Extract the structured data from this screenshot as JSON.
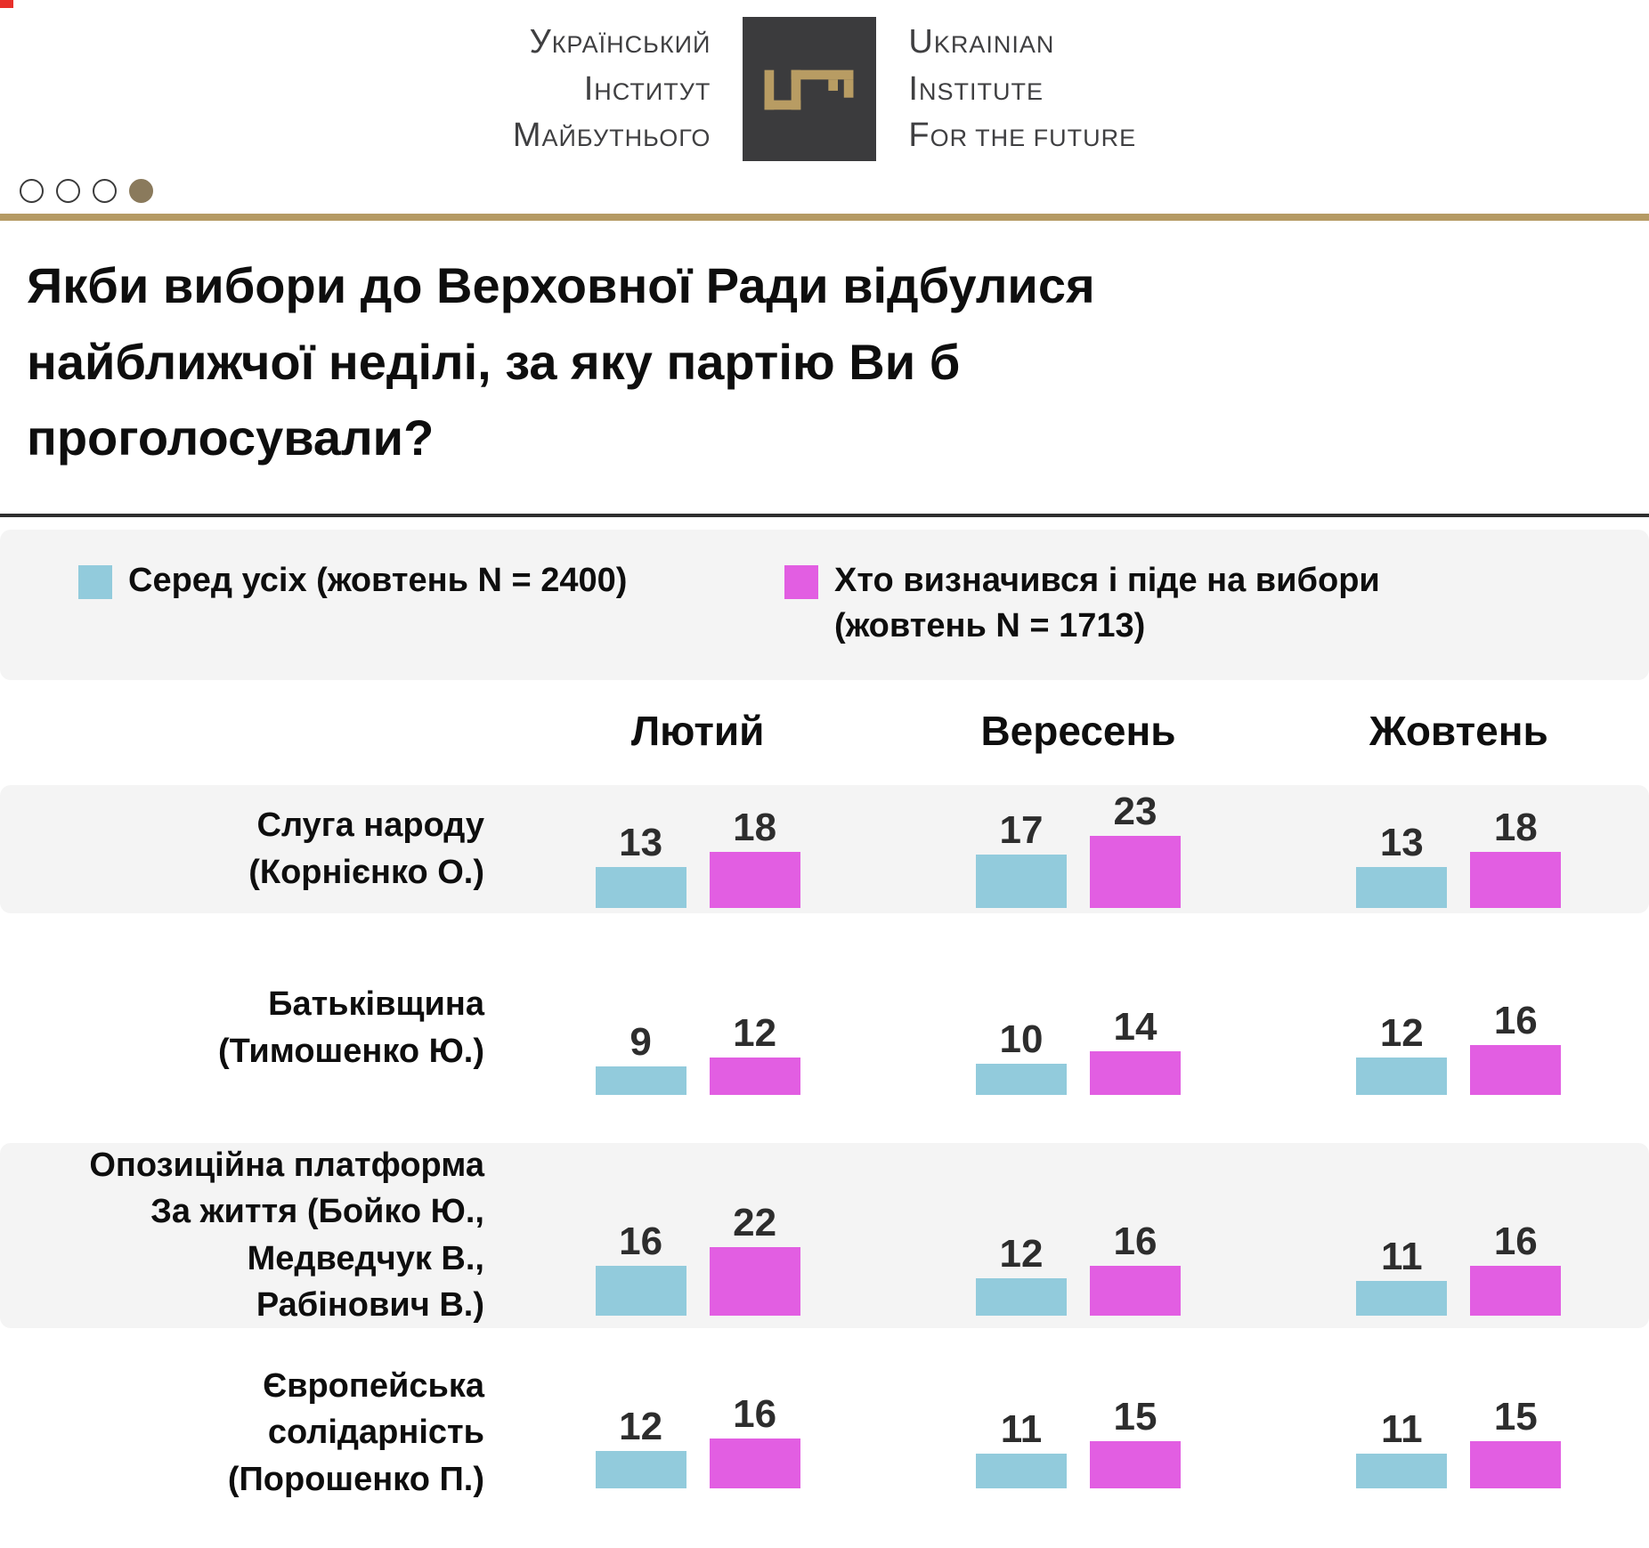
{
  "brand": {
    "name_uk_lines": [
      "Український",
      "Інститут",
      "Майбутнього"
    ],
    "name_en_lines": [
      "Ukrainian",
      "Institute",
      "for the Future"
    ],
    "logo_square_color": "#3b3b3d",
    "key_color": "#b89c63",
    "text_color": "#3f3f41"
  },
  "carousel": {
    "dot_count": 4,
    "active_index": 3
  },
  "accents": {
    "gold_line": "#b59a64",
    "active_dot": "#8a7a5c",
    "band_gray": "#f4f4f4",
    "dark_rule": "#2f2f2f"
  },
  "title": "Якби вибори до Верховної Ради відбулися найближчої неділі, за яку партію Ви б проголосували?",
  "legend": {
    "items": [
      {
        "label": "Серед усіх (жовтень N = 2400)",
        "color": "#92cbdc"
      },
      {
        "label": "Хто визначився і піде на вибори (жовтень N = 1713)",
        "color": "#e25ee2"
      }
    ]
  },
  "chart_data": {
    "type": "bar",
    "title": "Якби вибори до Верховної Ради відбулися найближчої неділі, за яку партію Ви б проголосували?",
    "unit": "percent",
    "columns": [
      "Лютий",
      "Вересень",
      "Жовтень"
    ],
    "series": [
      {
        "name": "Серед усіх (жовтень N = 2400)",
        "color": "#92cbdc"
      },
      {
        "name": "Хто визначився і піде на вибори (жовтень N = 1713)",
        "color": "#e25ee2"
      }
    ],
    "rows": [
      {
        "party": "Слуга народу (Корнієнко О.)",
        "label_lines": [
          "Слуга народу",
          "(Корнієнко О.)"
        ],
        "values": [
          [
            13,
            18
          ],
          [
            17,
            23
          ],
          [
            13,
            18
          ]
        ]
      },
      {
        "party": "Батьківщина (Тимошенко Ю.)",
        "label_lines": [
          "Батьківщина",
          "(Тимошенко Ю.)"
        ],
        "values": [
          [
            9,
            12
          ],
          [
            10,
            14
          ],
          [
            12,
            16
          ]
        ]
      },
      {
        "party": "Опозиційна платформа За життя (Бойко Ю., Медведчук В., Рабінович В.)",
        "label_lines": [
          "Опозиційна платформа",
          "За життя (Бойко Ю.,",
          "Медведчук В.,",
          "Рабінович В.)"
        ],
        "values": [
          [
            16,
            22
          ],
          [
            12,
            16
          ],
          [
            11,
            16
          ]
        ]
      },
      {
        "party": "Європейська солідарність (Порошенко П.)",
        "label_lines": [
          "Європейська",
          "солідарність",
          "(Порошенко П.)"
        ],
        "values": [
          [
            12,
            16
          ],
          [
            11,
            15
          ],
          [
            11,
            15
          ]
        ]
      }
    ]
  }
}
